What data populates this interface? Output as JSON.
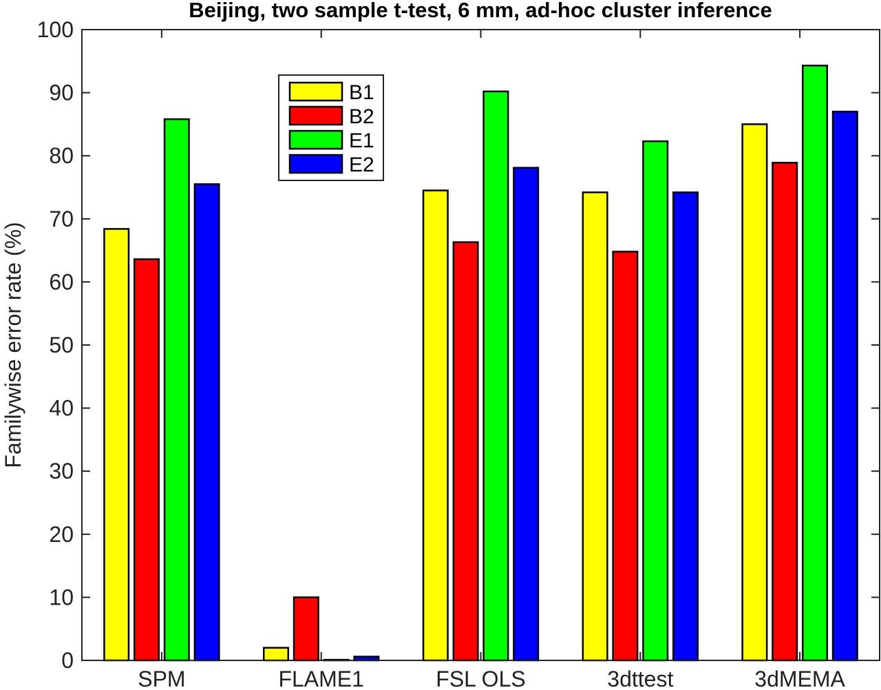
{
  "chart_data": {
    "type": "bar",
    "title": "Beijing, two sample t-test, 6 mm, ad-hoc cluster inference",
    "xlabel": "",
    "ylabel": "Familywise error rate (%)",
    "ylim": [
      0,
      100
    ],
    "yticks": [
      "0",
      "10",
      "20",
      "30",
      "40",
      "50",
      "60",
      "70",
      "80",
      "90",
      "100"
    ],
    "categories": [
      "SPM",
      "FLAME1",
      "FSL OLS",
      "3dttest",
      "3dMEMA"
    ],
    "series": [
      {
        "name": "B1",
        "color": "#ffff00",
        "values": [
          68.4,
          2.0,
          74.5,
          74.2,
          85.0
        ]
      },
      {
        "name": "B2",
        "color": "#ff0000",
        "values": [
          63.6,
          10.0,
          66.3,
          64.8,
          78.9
        ]
      },
      {
        "name": "E1",
        "color": "#00ff00",
        "values": [
          85.8,
          0.1,
          90.2,
          82.3,
          94.3
        ]
      },
      {
        "name": "E2",
        "color": "#0000ff",
        "values": [
          75.5,
          0.6,
          78.1,
          74.2,
          87.0
        ]
      }
    ],
    "legend_position": "top-left",
    "grid": false
  }
}
